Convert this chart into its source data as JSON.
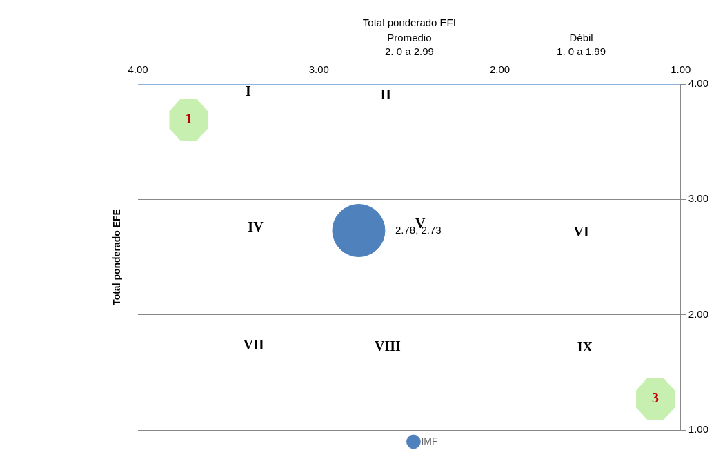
{
  "chart_data": {
    "type": "bubble",
    "xlabel": "Total ponderado EFI",
    "ylabel": "Total ponderado EFE",
    "xlim": [
      4,
      1
    ],
    "xticks": [
      {
        "value": 4,
        "label": "4.00"
      },
      {
        "value": 3,
        "label": "3.00"
      },
      {
        "value": 2,
        "label": "2.00"
      },
      {
        "value": 1,
        "label": "1.00"
      }
    ],
    "ylim": [
      1,
      4
    ],
    "yticks": [
      {
        "value": 1,
        "label": "1.00"
      },
      {
        "value": 2,
        "label": "2.00"
      },
      {
        "value": 3,
        "label": "3.00"
      },
      {
        "value": 4,
        "label": "4.00"
      }
    ],
    "grid": "y",
    "legend": "bottom",
    "marker": "circle",
    "series": [
      {
        "name": "IMF",
        "color": "#4f81bd",
        "x": [
          2.78
        ],
        "values": [
          2.73
        ],
        "sizes": [
          1
        ],
        "value_labels": [
          "2.78, 2.73"
        ]
      }
    ],
    "annotations": [
      "Promedio\n2. 0 a 2.99",
      "Débil\n1. 0 a 1.99",
      "I",
      "II",
      "IV",
      "V",
      "VI",
      "VII",
      "VIII",
      "IX",
      "1",
      "3"
    ]
  }
}
